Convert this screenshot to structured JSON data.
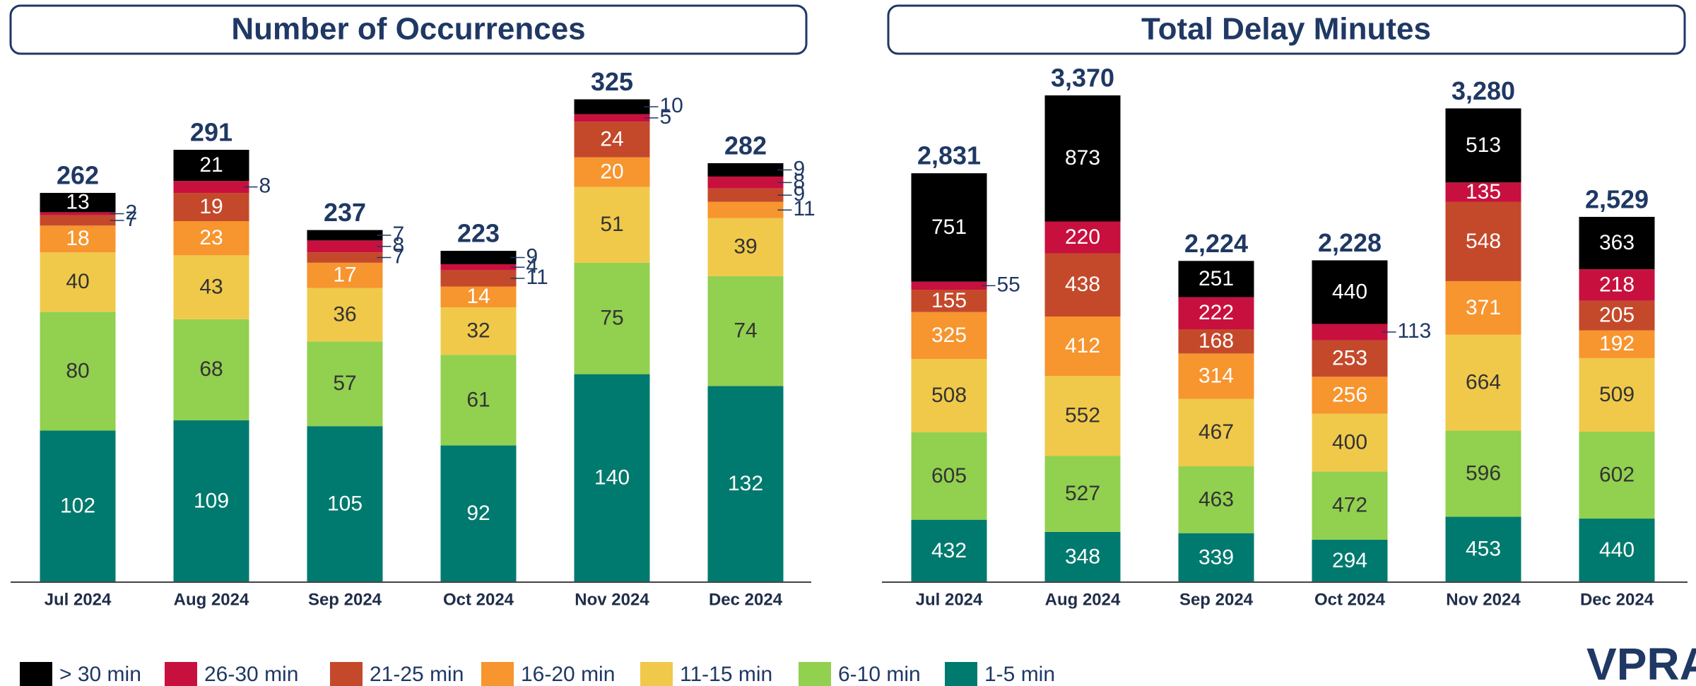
{
  "chart_data": [
    {
      "type": "stacked-bar",
      "title": "Number of Occurrences",
      "categories": [
        "Jul 2024",
        "Aug 2024",
        "Sep 2024",
        "Oct 2024",
        "Nov 2024",
        "Dec 2024"
      ],
      "ylim": [
        0,
        350
      ],
      "series": [
        {
          "name": "> 30 min",
          "color": "#000000",
          "label_color": "#ffffff",
          "values": [
            13,
            21,
            7,
            9,
            10,
            9
          ]
        },
        {
          "name": "26-30 min",
          "color": "#c8103e",
          "label_color": "#ffffff",
          "values": [
            2,
            8,
            8,
            4,
            5,
            8
          ]
        },
        {
          "name": "21-25 min",
          "color": "#c4492b",
          "label_color": "#ffffff",
          "values": [
            7,
            19,
            7,
            11,
            24,
            9
          ]
        },
        {
          "name": "16-20 min",
          "color": "#f7952e",
          "label_color": "#ffffff",
          "values": [
            18,
            23,
            17,
            14,
            20,
            11
          ]
        },
        {
          "name": "11-15 min",
          "color": "#f0c94a",
          "label_color": "#333333",
          "values": [
            40,
            43,
            36,
            32,
            51,
            39
          ]
        },
        {
          "name": "6-10 min",
          "color": "#92d050",
          "label_color": "#333333",
          "values": [
            80,
            68,
            57,
            61,
            75,
            74
          ]
        },
        {
          "name": "1-5 min",
          "color": "#007a6e",
          "label_color": "#ffffff",
          "values": [
            102,
            109,
            105,
            92,
            140,
            132
          ]
        }
      ],
      "totals": [
        262,
        291,
        237,
        223,
        325,
        282
      ]
    },
    {
      "type": "stacked-bar",
      "title": "Total Delay Minutes",
      "categories": [
        "Jul 2024",
        "Aug 2024",
        "Sep 2024",
        "Oct 2024",
        "Nov 2024",
        "Dec 2024"
      ],
      "ylim": [
        0,
        3600
      ],
      "series": [
        {
          "name": "> 30 min",
          "color": "#000000",
          "label_color": "#ffffff",
          "values": [
            751,
            873,
            251,
            440,
            513,
            363
          ]
        },
        {
          "name": "26-30 min",
          "color": "#c8103e",
          "label_color": "#ffffff",
          "values": [
            55,
            220,
            222,
            113,
            135,
            218
          ]
        },
        {
          "name": "21-25 min",
          "color": "#c4492b",
          "label_color": "#ffffff",
          "values": [
            155,
            438,
            168,
            253,
            548,
            205
          ]
        },
        {
          "name": "16-20 min",
          "color": "#f7952e",
          "label_color": "#ffffff",
          "values": [
            325,
            412,
            314,
            256,
            371,
            192
          ]
        },
        {
          "name": "11-15 min",
          "color": "#f0c94a",
          "label_color": "#333333",
          "values": [
            508,
            552,
            467,
            400,
            664,
            509
          ]
        },
        {
          "name": "6-10 min",
          "color": "#92d050",
          "label_color": "#333333",
          "values": [
            605,
            527,
            463,
            472,
            596,
            602
          ]
        },
        {
          "name": "1-5 min",
          "color": "#007a6e",
          "label_color": "#ffffff",
          "values": [
            432,
            348,
            339,
            294,
            453,
            440
          ]
        }
      ],
      "totals": [
        2831,
        3370,
        2224,
        2228,
        3280,
        2529
      ],
      "total_labels": [
        "2,831",
        "3,370",
        "2,224",
        "2,228",
        "3,280",
        "2,529"
      ]
    }
  ],
  "logo": "VPRA"
}
